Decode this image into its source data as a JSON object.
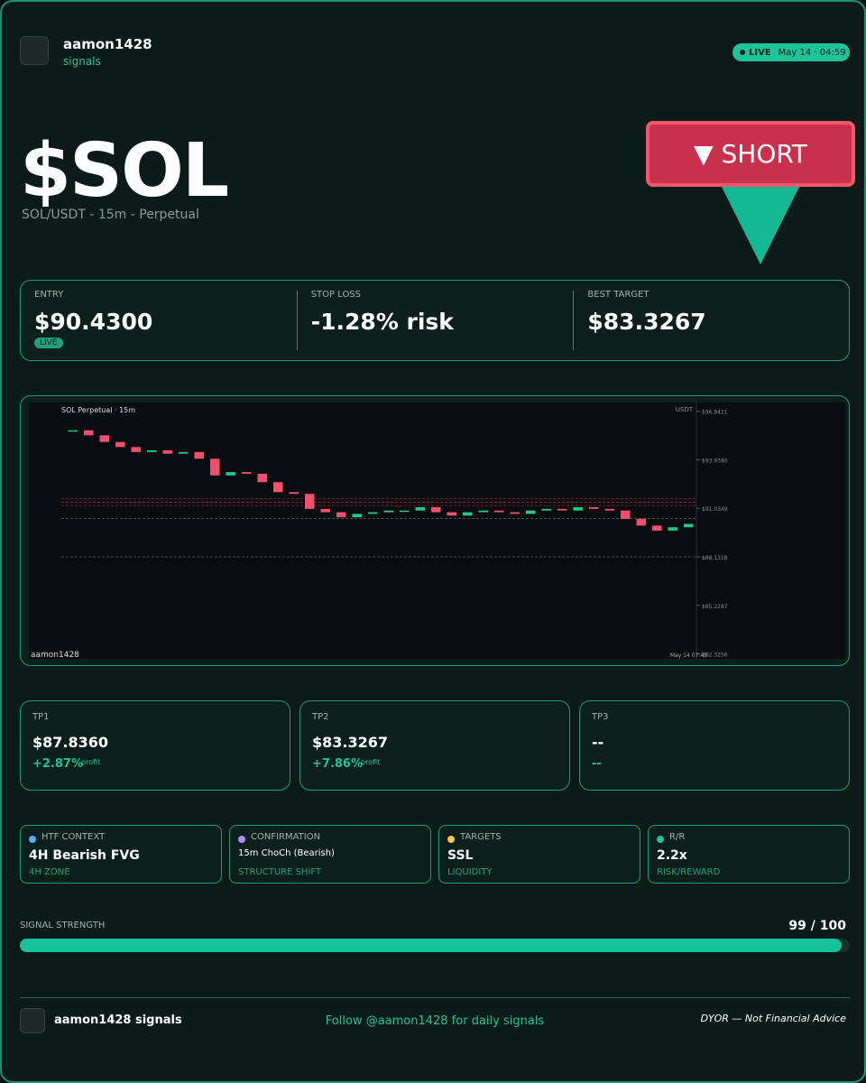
{
  "header": {
    "username": "aamon1428",
    "subtitle": "signals",
    "live": "LIVE",
    "timestamp": "May 14 · 04:59"
  },
  "ticker": {
    "symbol": "$SOL",
    "pair": "SOL/USDT - 15m - Perpetual",
    "direction": "▼ SHORT"
  },
  "stats": [
    {
      "label": "ENTRY",
      "value": "$90.4300",
      "badge": "LIVE"
    },
    {
      "label": "STOP LOSS",
      "value": "-1.28% risk"
    },
    {
      "label": "BEST TARGET",
      "value": "$83.3267"
    }
  ],
  "chart_data": {
    "type": "candlestick",
    "title": "SOL Perpetual · 15m",
    "currency": "USDT",
    "watermark": "aamon1428",
    "time_label": "May 14 07:45",
    "open": [
      95.7,
      95.7,
      95.4,
      95.0,
      94.7,
      94.4,
      94.5,
      94.3,
      94.4,
      94.0,
      93.0,
      93.2,
      93.1,
      92.6,
      92.0,
      91.9,
      91.0,
      90.8,
      90.5,
      90.7,
      90.8,
      90.9,
      90.9,
      91.1,
      90.8,
      90.6,
      90.8,
      90.9,
      90.8,
      90.7,
      90.9,
      91.0,
      90.9,
      91.1,
      91.0,
      90.9,
      90.4,
      90.0,
      89.7,
      89.9
    ],
    "close": [
      95.7,
      95.4,
      95.0,
      94.7,
      94.4,
      94.5,
      94.3,
      94.4,
      94.0,
      93.0,
      93.2,
      93.1,
      92.6,
      92.0,
      91.9,
      91.0,
      90.8,
      90.5,
      90.7,
      90.8,
      90.9,
      90.9,
      91.1,
      90.8,
      90.6,
      90.8,
      90.9,
      90.8,
      90.7,
      90.9,
      91.0,
      90.9,
      91.1,
      91.0,
      90.9,
      90.4,
      90.0,
      89.7,
      89.9,
      90.1
    ],
    "levels": [
      91.6,
      91.4,
      91.2,
      90.43,
      88.13
    ],
    "ylim": [
      82.3,
      97.2
    ],
    "yticks": [
      {
        "value": 96.8411,
        "label": "$96.8411"
      },
      {
        "value": 93.938,
        "label": "$93.9380"
      },
      {
        "value": 91.0349,
        "label": "$91.0349"
      },
      {
        "value": 88.1318,
        "label": "$88.1318"
      },
      {
        "value": 85.2287,
        "label": "$85.2287"
      },
      {
        "value": 82.3256,
        "label": "$82.3256"
      }
    ],
    "up_color": "#22c98a",
    "down_color": "#f0506e"
  },
  "targets": [
    {
      "label": "TP1",
      "price": "$87.8360",
      "gain": "+2.87%",
      "note": "profit"
    },
    {
      "label": "TP2",
      "price": "$83.3267",
      "gain": "+7.86%",
      "note": "profit"
    },
    {
      "label": "TP3",
      "price": "--",
      "gain": "--"
    }
  ],
  "context": [
    {
      "label": "HTF CONTEXT",
      "value": "4H Bearish FVG",
      "sub": "4H ZONE",
      "color": "#5aa8ff"
    },
    {
      "label": "CONFIRMATION",
      "value": "15m ChoCh (Bearish)",
      "sub": "STRUCTURE SHIFT",
      "color": "#b08cff"
    },
    {
      "label": "TARGETS",
      "value": "SSL",
      "sub": "LIQUIDITY",
      "color": "#f5c542"
    },
    {
      "label": "R/R",
      "value": "2.2x",
      "sub": "RISK/REWARD",
      "color": "#1fc39a"
    }
  ],
  "signal_strength": {
    "label": "SIGNAL STRENGTH",
    "score_text": "99 / 100",
    "score": 99,
    "max": 100
  },
  "footer": {
    "brand": "aamon1428 signals",
    "follow": "Follow @aamon1428 for daily signals",
    "disclaimer": "DYOR — Not Financial Advice"
  }
}
